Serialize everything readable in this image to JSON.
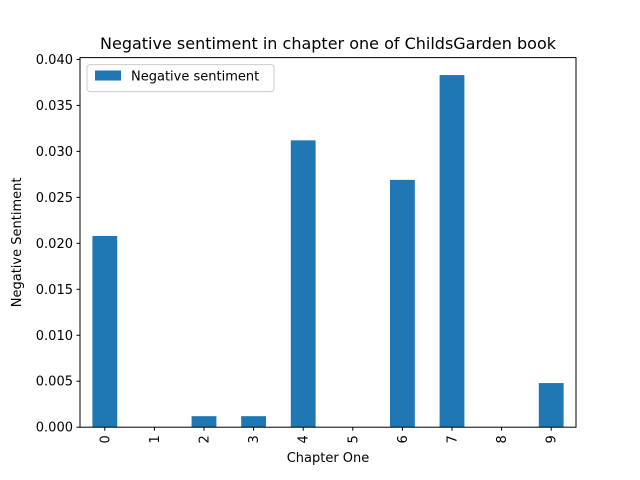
{
  "chart_data": {
    "type": "bar",
    "title": "Negative sentiment in chapter one of ChildsGarden book",
    "xlabel": "Chapter One",
    "ylabel": "Negative Sentiment",
    "categories": [
      "0",
      "1",
      "2",
      "3",
      "4",
      "5",
      "6",
      "7",
      "8",
      "9"
    ],
    "series": [
      {
        "name": "Negative sentiment",
        "values": [
          0.0208,
          0,
          0.0012,
          0.0012,
          0.0312,
          0,
          0.0269,
          0.0383,
          0,
          0.0048
        ],
        "color": "#1f77b4"
      }
    ],
    "ylim": [
      0,
      0.0402
    ],
    "yticks": [
      "0.000",
      "0.005",
      "0.010",
      "0.015",
      "0.020",
      "0.025",
      "0.030",
      "0.035",
      "0.040"
    ],
    "grid": false,
    "legend_position": "top-left"
  }
}
